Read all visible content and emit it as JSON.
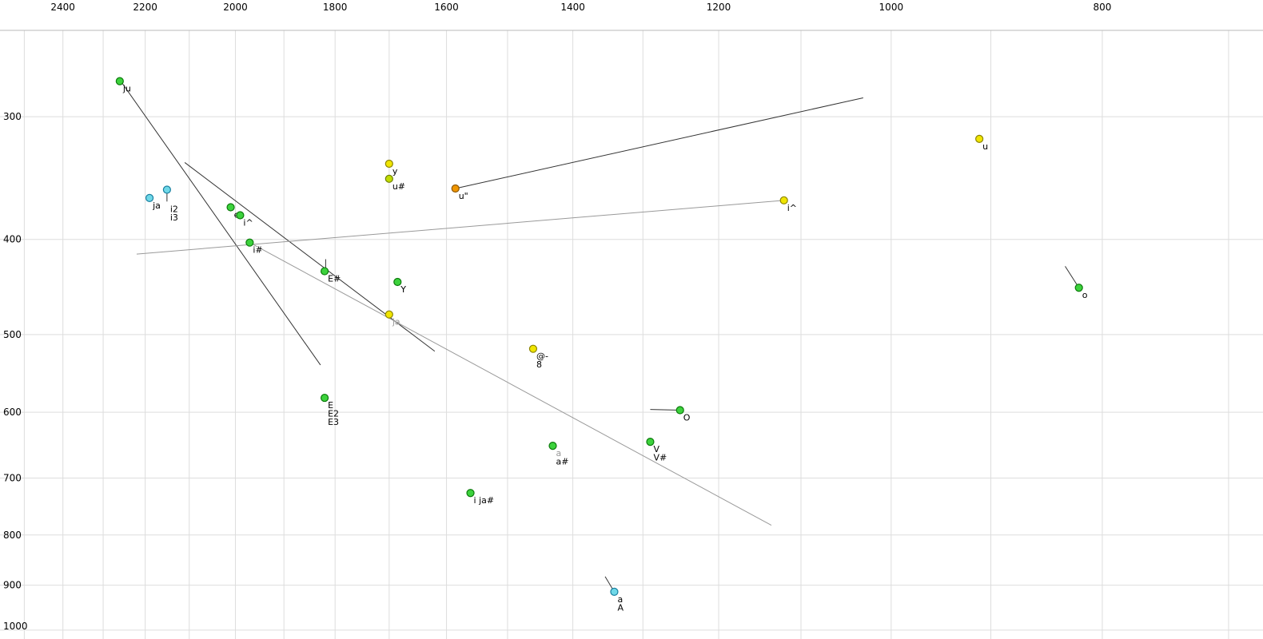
{
  "chart_data": {
    "type": "scatter",
    "description": "Vowel formant plot: F2 (Hz, log scale, decreasing left-to-right) on top axis, F1 (Hz, log scale, increasing downward) on left axis, labeled vowel points with trajectory lines",
    "x_axis": {
      "position": "top",
      "scale": "log",
      "reversed": true,
      "tick_labels": [
        "2400",
        "2200",
        "2000",
        "1800",
        "1600",
        "1400",
        "1200",
        "1000",
        "800"
      ],
      "ticks": [
        2400,
        2200,
        2000,
        1800,
        1600,
        1400,
        1200,
        1000,
        800
      ],
      "grid": [
        2500,
        2400,
        2300,
        2200,
        2100,
        2000,
        1900,
        1800,
        1700,
        1600,
        1500,
        1400,
        1300,
        1200,
        1100,
        1000,
        900,
        800,
        700
      ],
      "range": [
        2565,
        675
      ]
    },
    "y_axis": {
      "position": "left",
      "scale": "log",
      "tick_labels": [
        "300",
        "400",
        "500",
        "600",
        "700",
        "800",
        "900",
        "1000"
      ],
      "ticks": [
        300,
        400,
        500,
        600,
        700,
        800,
        900,
        1000
      ],
      "grid": [
        300,
        400,
        500,
        600,
        700,
        800,
        900,
        1000
      ],
      "range": [
        245,
        1021
      ]
    },
    "palette": {
      "green": {
        "fill": "#3cd23c",
        "stroke": "#0c7a0c"
      },
      "cyan": {
        "fill": "#6fd8e8",
        "stroke": "#1a80a0"
      },
      "yellow": {
        "fill": "#f0e500",
        "stroke": "#8c8400"
      },
      "yellowgreen": {
        "fill": "#c0dc00",
        "stroke": "#6e7e00"
      },
      "orange": {
        "fill": "#f09600",
        "stroke": "#8c5600"
      }
    },
    "grid_color": "#dddddd",
    "border_color": "#b8b8b8",
    "line_colors": {
      "black": "#333333",
      "gray": "#999999"
    },
    "points": [
      {
        "labels": [
          {
            "text": "ju"
          }
        ],
        "f2": 2260,
        "f1": 276,
        "color": "green"
      },
      {
        "labels": [
          {
            "text": "ja"
          }
        ],
        "f2": 2190,
        "f1": 363,
        "color": "cyan"
      },
      {
        "labels": [
          {
            "text": "i2"
          },
          {
            "text": "i3"
          }
        ],
        "f2": 2150,
        "f1": 356,
        "color": "cyan",
        "label_dy": 28
      },
      {
        "labels": [
          {
            "text": "e"
          }
        ],
        "f2": 2010,
        "f1": 371,
        "color": "green"
      },
      {
        "labels": [
          {
            "text": "i^"
          }
        ],
        "f2": 1990,
        "f1": 378,
        "color": "green"
      },
      {
        "labels": [
          {
            "text": "i#"
          }
        ],
        "f2": 1970,
        "f1": 403,
        "color": "green"
      },
      {
        "labels": [
          {
            "text": "E#"
          }
        ],
        "f2": 1820,
        "f1": 431,
        "color": "green"
      },
      {
        "labels": [
          {
            "text": "Y"
          }
        ],
        "f2": 1685,
        "f1": 442,
        "color": "green"
      },
      {
        "labels": [
          {
            "text": "ja",
            "muted": true
          }
        ],
        "f2": 1700,
        "f1": 477,
        "color": "yellow"
      },
      {
        "labels": [
          {
            "text": "y"
          }
        ],
        "f2": 1700,
        "f1": 335,
        "color": "yellow"
      },
      {
        "labels": [
          {
            "text": "u#"
          }
        ],
        "f2": 1700,
        "f1": 347,
        "color": "yellowgreen"
      },
      {
        "labels": [
          {
            "text": "u\""
          }
        ],
        "f2": 1585,
        "f1": 355,
        "color": "orange"
      },
      {
        "labels": [
          {
            "text": "i^"
          }
        ],
        "f2": 1120,
        "f1": 365,
        "color": "yellow"
      },
      {
        "labels": [
          {
            "text": "u"
          }
        ],
        "f2": 911,
        "f1": 316,
        "color": "yellow"
      },
      {
        "labels": [
          {
            "text": "o"
          }
        ],
        "f2": 820,
        "f1": 448,
        "color": "green"
      },
      {
        "labels": [
          {
            "text": "@-"
          },
          {
            "text": "8"
          }
        ],
        "f2": 1460,
        "f1": 517,
        "color": "yellow"
      },
      {
        "labels": [
          {
            "text": "E"
          },
          {
            "text": "E2"
          },
          {
            "text": "E3"
          }
        ],
        "f2": 1820,
        "f1": 580,
        "color": "green"
      },
      {
        "labels": [
          {
            "text": "O"
          }
        ],
        "f2": 1250,
        "f1": 597,
        "color": "green"
      },
      {
        "labels": [
          {
            "text": "a",
            "muted": true
          },
          {
            "text": "a#"
          }
        ],
        "f2": 1430,
        "f1": 649,
        "color": "green"
      },
      {
        "labels": [
          {
            "text": "V"
          },
          {
            "text": "V#"
          }
        ],
        "f2": 1290,
        "f1": 643,
        "color": "green"
      },
      {
        "labels": [
          {
            "text": "i ja#"
          }
        ],
        "f2": 1560,
        "f1": 725,
        "color": "green"
      },
      {
        "labels": [
          {
            "text": "a"
          },
          {
            "text": "A"
          }
        ],
        "f2": 1340,
        "f1": 914,
        "color": "cyan"
      }
    ],
    "segments": [
      {
        "from": [
          2255,
          277
        ],
        "to": [
          1828,
          537
        ],
        "color": "black"
      },
      {
        "from": [
          2110,
          334
        ],
        "to": [
          1620,
          520
        ],
        "color": "black"
      },
      {
        "from": [
          1585,
          355
        ],
        "to": [
          1030,
          287
        ],
        "color": "black"
      },
      {
        "from": [
          2220,
          414
        ],
        "to": [
          1120,
          365
        ],
        "color": "gray"
      },
      {
        "from": [
          1970,
          403
        ],
        "to": [
          1135,
          782
        ],
        "color": "gray"
      },
      {
        "from": [
          1290,
          596
        ],
        "to": [
          1250,
          597
        ],
        "color": "black"
      },
      {
        "from": [
          832,
          426
        ],
        "to": [
          820,
          448
        ],
        "color": "black"
      },
      {
        "from": [
          1353,
          882
        ],
        "to": [
          1340,
          914
        ],
        "color": "black"
      },
      {
        "from": [
          1818,
          419
        ],
        "to": [
          1818,
          432
        ],
        "color": "black"
      },
      {
        "from": [
          2150,
          356
        ],
        "to": [
          2150,
          366
        ],
        "color": "black"
      }
    ]
  }
}
